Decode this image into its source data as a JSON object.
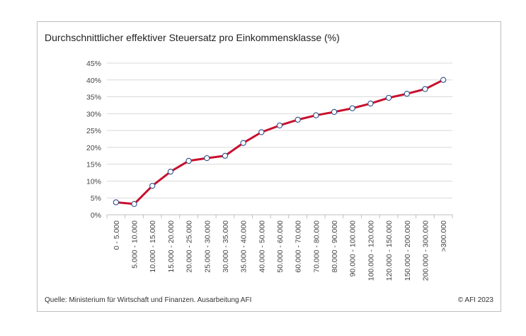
{
  "chart_data": {
    "type": "line",
    "title": "Durchschnittlicher effektiver Steuersatz pro Einkommensklasse (%)",
    "categories": [
      "0 - 5.000",
      "5.000 - 10.000",
      "10.000 - 15.000",
      "15.000 - 20.000",
      "20.000 - 25.000",
      "25.000 - 30.000",
      "30.000 - 35.000",
      "35.000 - 40.000",
      "40.000 - 50.000",
      "50.000 - 60.000",
      "60.000 - 70.000",
      "70.000 - 80.000",
      "80.000 - 90.000",
      "90.000 - 100.000",
      "100.000 - 120.000",
      "120.000 - 150.000",
      "150.000 - 200.000",
      "200.000 - 300.000",
      ">300.000"
    ],
    "series": [
      {
        "values": [
          3.7,
          3.2,
          8.6,
          12.8,
          16.0,
          16.8,
          17.5,
          21.3,
          24.5,
          26.5,
          28.2,
          29.5,
          30.5,
          31.6,
          33.0,
          34.7,
          35.9,
          37.3,
          40.0
        ]
      }
    ],
    "ylim": [
      0,
      45
    ],
    "yticks": [
      "0%",
      "5%",
      "10%",
      "15%",
      "20%",
      "25%",
      "30%",
      "35%",
      "40%",
      "45%"
    ],
    "ytick_values": [
      0,
      5,
      10,
      15,
      20,
      25,
      30,
      35,
      40,
      45
    ],
    "xlabel": "",
    "ylabel": "",
    "grid": true,
    "legend": "none",
    "colors": {
      "line": "#c8102e",
      "marker_fill": "#ffffff",
      "marker_stroke": "#2e4f8a",
      "grid": "#d9d9d9",
      "axis": "#bfbfbf"
    }
  },
  "footer": {
    "source": "Quelle: Ministerium für Wirtschaft und Finanzen. Ausarbeitung AFI",
    "copyright": "© AFI 2023"
  }
}
